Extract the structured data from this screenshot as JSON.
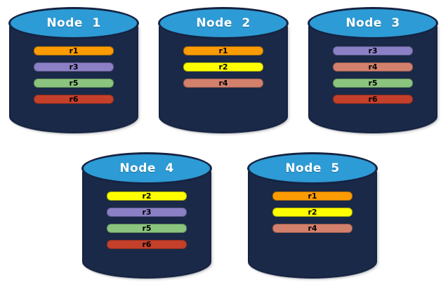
{
  "diagram": {
    "nodes": [
      {
        "label": "Node 1",
        "replicas": [
          "r1",
          "r3",
          "r5",
          "r6"
        ]
      },
      {
        "label": "Node 2",
        "replicas": [
          "r1",
          "r2",
          "r4"
        ]
      },
      {
        "label": "Node 3",
        "replicas": [
          "r3",
          "r4",
          "r5",
          "r6"
        ]
      },
      {
        "label": "Node 4",
        "replicas": [
          "r2",
          "r3",
          "r5",
          "r6"
        ]
      },
      {
        "label": "Node 5",
        "replicas": [
          "r1",
          "r2",
          "r4"
        ]
      }
    ],
    "rows": [
      [
        0,
        1,
        2
      ],
      [
        3,
        4
      ]
    ],
    "colors": {
      "cylinder_body": "#1A2947",
      "cylinder_top": "#2D9BD5",
      "cylinder_outline": "#152342",
      "replicas": {
        "r1": "#FB9B04",
        "r2": "#FDFD00",
        "r3": "#8B80C5",
        "r4": "#D3806C",
        "r5": "#8BC47E",
        "r6": "#C4402B"
      }
    }
  }
}
